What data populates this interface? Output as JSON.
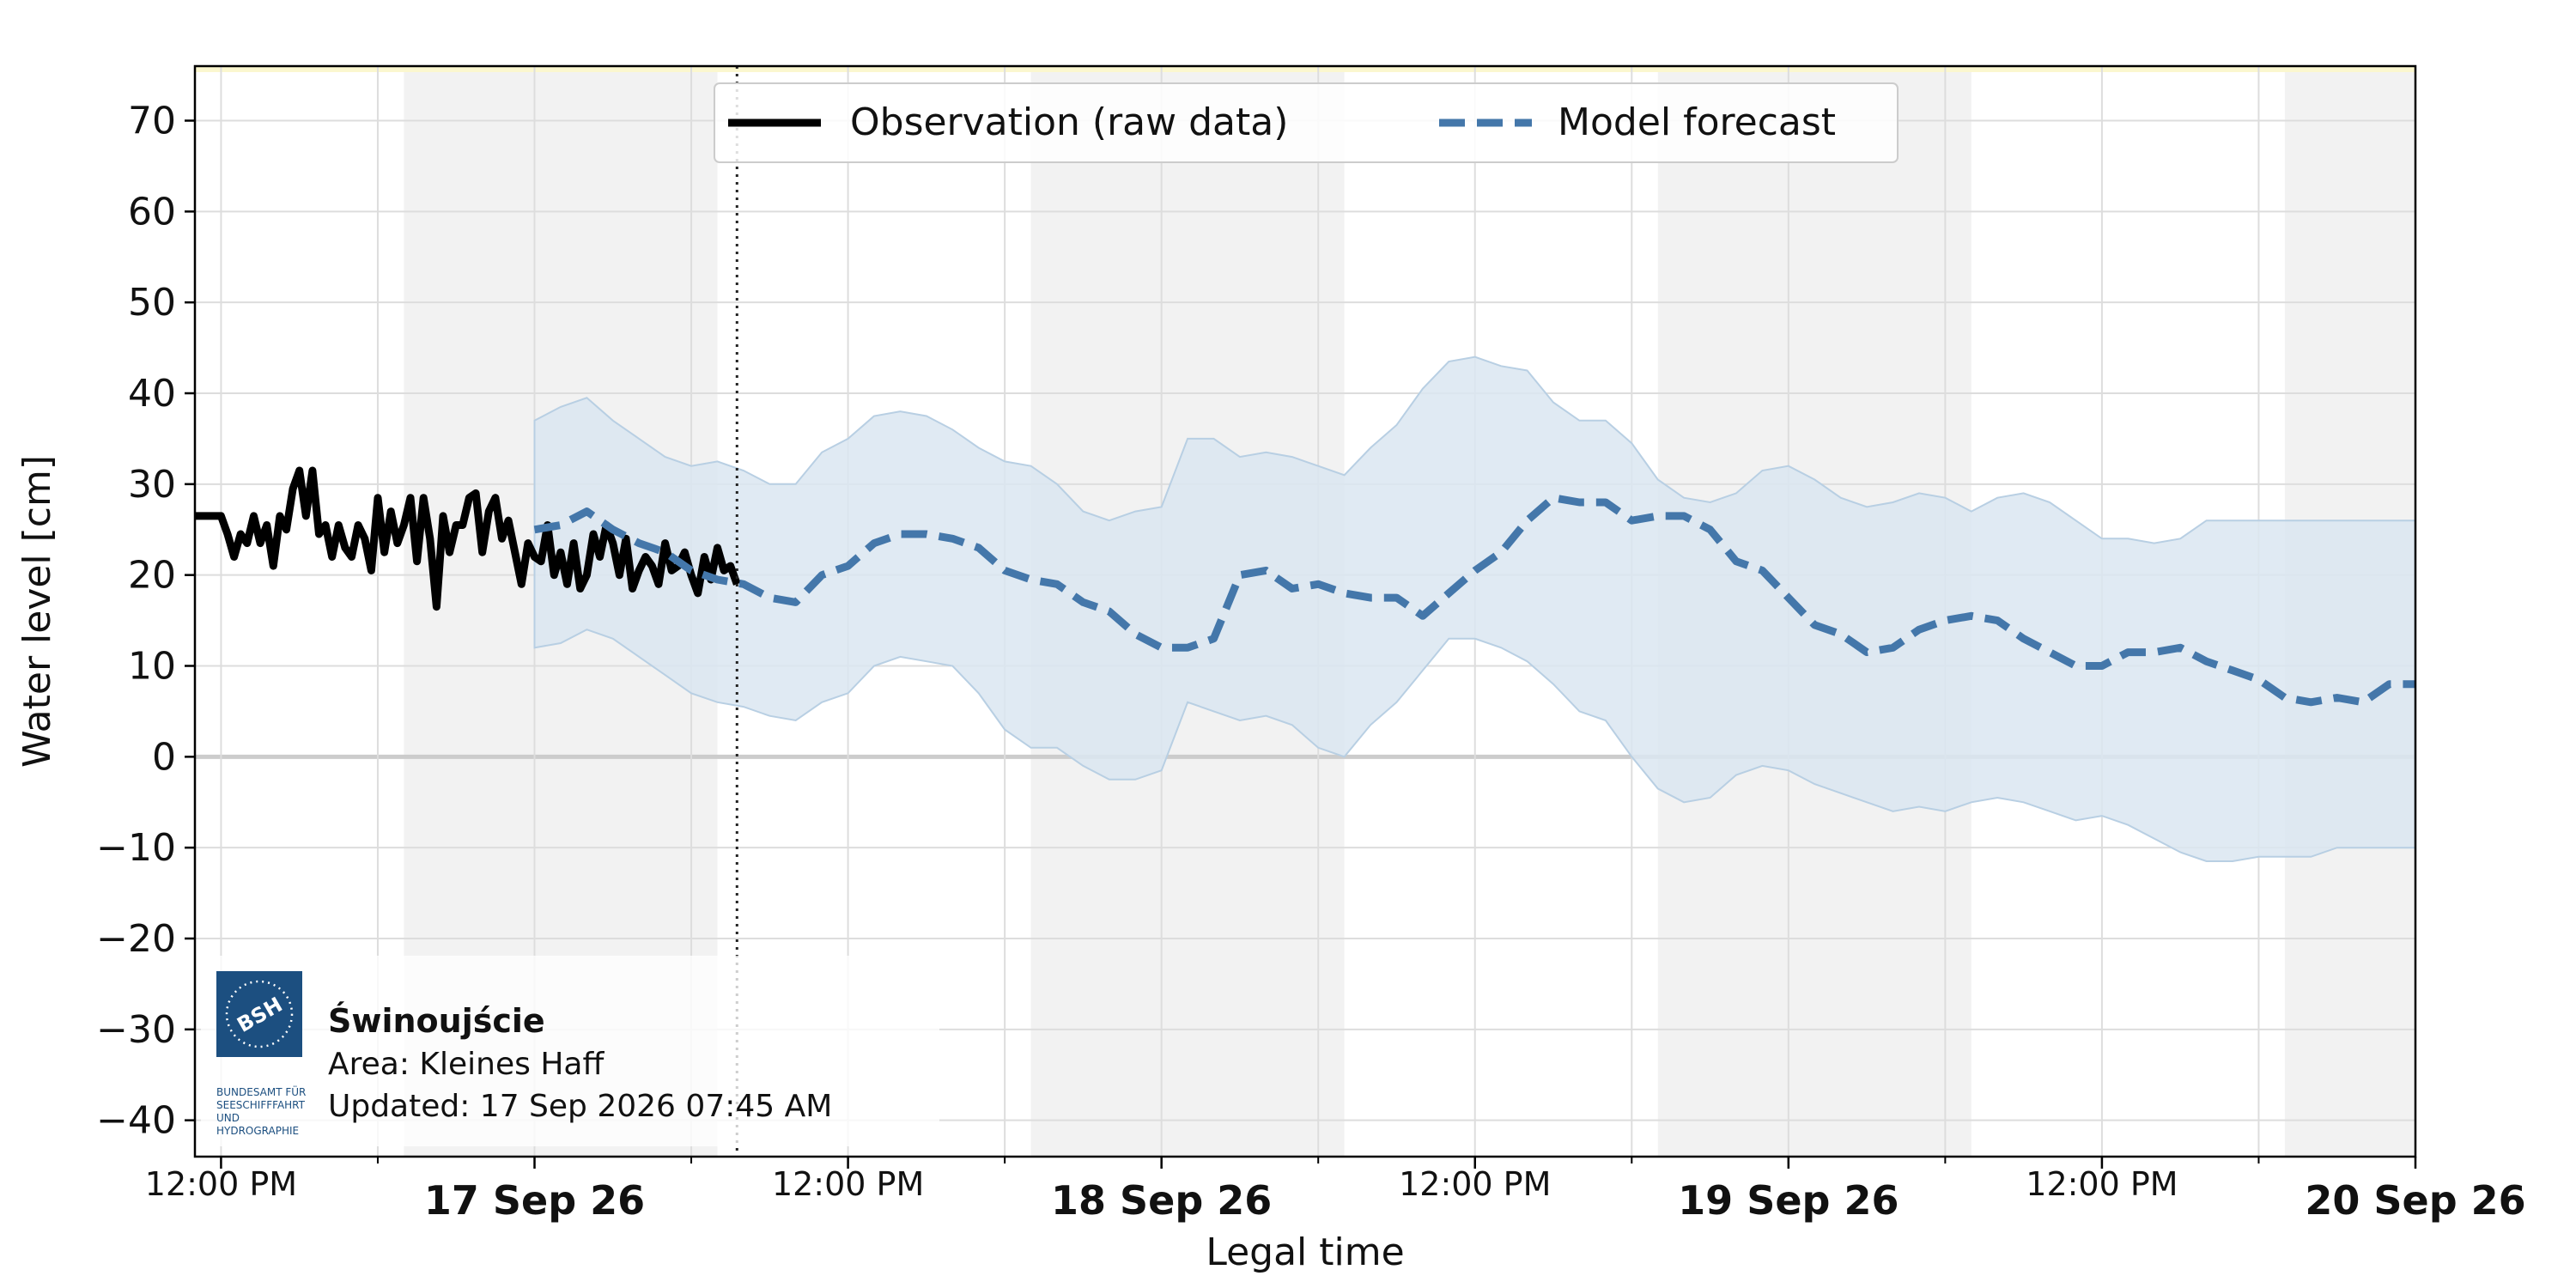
{
  "chart_data": {
    "type": "line",
    "xlabel": "Legal time",
    "ylabel": "Water level [cm]",
    "ylim": [
      -44,
      76
    ],
    "xlim": [
      "2026-09-16 11:00",
      "2026-09-20 00:00"
    ],
    "yticks": [
      70,
      60,
      50,
      40,
      30,
      20,
      10,
      0,
      -10,
      -20,
      -30,
      -40
    ],
    "grid": true,
    "legend_position": "top-center",
    "now_marker": "2026-09-17 07:45",
    "x_ticks": [
      {
        "t": "2026-09-16 12:00",
        "label": "12:00 PM",
        "major": false
      },
      {
        "t": "2026-09-17 00:00",
        "label": "17 Sep 26",
        "major": true
      },
      {
        "t": "2026-09-17 12:00",
        "label": "12:00 PM",
        "major": false
      },
      {
        "t": "2026-09-18 00:00",
        "label": "18 Sep 26",
        "major": true
      },
      {
        "t": "2026-09-18 12:00",
        "label": "12:00 PM",
        "major": false
      },
      {
        "t": "2026-09-19 00:00",
        "label": "19 Sep 26",
        "major": true
      },
      {
        "t": "2026-09-19 12:00",
        "label": "12:00 PM",
        "major": false
      },
      {
        "t": "2026-09-20 00:00",
        "label": "20 Sep 26",
        "major": true
      }
    ],
    "night_bands": [
      [
        "2026-09-16 19:00",
        "2026-09-17 07:00"
      ],
      [
        "2026-09-17 19:00",
        "2026-09-18 07:00"
      ],
      [
        "2026-09-18 19:00",
        "2026-09-19 07:00"
      ],
      [
        "2026-09-19 19:00",
        "2026-09-20 00:00"
      ]
    ],
    "series": [
      {
        "name": "Observation (raw data)",
        "color": "#000000",
        "style": "solid",
        "x": [
          "2026-09-16 11:00",
          "2026-09-16 11:30",
          "2026-09-16 12:00",
          "2026-09-16 12:15",
          "2026-09-16 12:30",
          "2026-09-16 12:45",
          "2026-09-16 13:00",
          "2026-09-16 13:15",
          "2026-09-16 13:30",
          "2026-09-16 13:45",
          "2026-09-16 14:00",
          "2026-09-16 14:15",
          "2026-09-16 14:30",
          "2026-09-16 14:45",
          "2026-09-16 15:00",
          "2026-09-16 15:15",
          "2026-09-16 15:30",
          "2026-09-16 15:45",
          "2026-09-16 16:00",
          "2026-09-16 16:15",
          "2026-09-16 16:30",
          "2026-09-16 16:45",
          "2026-09-16 17:00",
          "2026-09-16 17:15",
          "2026-09-16 17:30",
          "2026-09-16 17:45",
          "2026-09-16 18:00",
          "2026-09-16 18:15",
          "2026-09-16 18:30",
          "2026-09-16 18:45",
          "2026-09-16 19:00",
          "2026-09-16 19:15",
          "2026-09-16 19:30",
          "2026-09-16 19:45",
          "2026-09-16 20:00",
          "2026-09-16 20:15",
          "2026-09-16 20:30",
          "2026-09-16 20:45",
          "2026-09-16 21:00",
          "2026-09-16 21:15",
          "2026-09-16 21:30",
          "2026-09-16 21:45",
          "2026-09-16 22:00",
          "2026-09-16 22:15",
          "2026-09-16 22:30",
          "2026-09-16 22:45",
          "2026-09-16 23:00",
          "2026-09-16 23:15",
          "2026-09-16 23:30",
          "2026-09-16 23:45",
          "2026-09-17 00:00",
          "2026-09-17 00:15",
          "2026-09-17 00:30",
          "2026-09-17 00:45",
          "2026-09-17 01:00",
          "2026-09-17 01:15",
          "2026-09-17 01:30",
          "2026-09-17 01:45",
          "2026-09-17 02:00",
          "2026-09-17 02:15",
          "2026-09-17 02:30",
          "2026-09-17 02:45",
          "2026-09-17 03:00",
          "2026-09-17 03:15",
          "2026-09-17 03:30",
          "2026-09-17 03:45",
          "2026-09-17 04:00",
          "2026-09-17 04:15",
          "2026-09-17 04:30",
          "2026-09-17 04:45",
          "2026-09-17 05:00",
          "2026-09-17 05:15",
          "2026-09-17 05:30",
          "2026-09-17 05:45",
          "2026-09-17 06:00",
          "2026-09-17 06:15",
          "2026-09-17 06:30",
          "2026-09-17 06:45",
          "2026-09-17 07:00",
          "2026-09-17 07:15",
          "2026-09-17 07:30",
          "2026-09-17 07:45"
        ],
        "y": [
          26.5,
          26.5,
          26.5,
          24.5,
          22,
          24.5,
          23.5,
          26.5,
          23.5,
          25.5,
          21,
          26.5,
          25,
          29.5,
          31.5,
          26.5,
          31.5,
          24.5,
          25.5,
          22,
          25.5,
          23,
          22,
          25.5,
          24,
          20.5,
          28.5,
          22.5,
          27,
          23.5,
          25.5,
          28.5,
          21.5,
          28.5,
          24,
          16.5,
          26.5,
          22.5,
          25.5,
          25.5,
          28.5,
          29,
          22.5,
          27,
          28.5,
          24,
          26,
          22.5,
          19,
          23.5,
          22,
          21.5,
          25.5,
          20,
          22.5,
          19,
          23.5,
          18.5,
          20,
          24.5,
          22,
          25.5,
          23.5,
          20,
          24,
          18.5,
          20.5,
          22,
          21,
          19,
          23.5,
          20.5,
          21,
          22.5,
          20,
          18,
          22,
          19.5,
          23,
          20.5,
          21,
          19
        ]
      },
      {
        "name": "Model forecast",
        "color": "#4477aa",
        "style": "dashed",
        "x": [
          "2026-09-17 00:00",
          "2026-09-17 01:00",
          "2026-09-17 02:00",
          "2026-09-17 03:00",
          "2026-09-17 04:00",
          "2026-09-17 05:00",
          "2026-09-17 06:00",
          "2026-09-17 07:00",
          "2026-09-17 08:00",
          "2026-09-17 09:00",
          "2026-09-17 10:00",
          "2026-09-17 11:00",
          "2026-09-17 12:00",
          "2026-09-17 13:00",
          "2026-09-17 14:00",
          "2026-09-17 15:00",
          "2026-09-17 16:00",
          "2026-09-17 17:00",
          "2026-09-17 18:00",
          "2026-09-17 19:00",
          "2026-09-17 20:00",
          "2026-09-17 21:00",
          "2026-09-17 22:00",
          "2026-09-17 23:00",
          "2026-09-18 00:00",
          "2026-09-18 01:00",
          "2026-09-18 02:00",
          "2026-09-18 03:00",
          "2026-09-18 04:00",
          "2026-09-18 05:00",
          "2026-09-18 06:00",
          "2026-09-18 07:00",
          "2026-09-18 08:00",
          "2026-09-18 09:00",
          "2026-09-18 10:00",
          "2026-09-18 11:00",
          "2026-09-18 12:00",
          "2026-09-18 13:00",
          "2026-09-18 14:00",
          "2026-09-18 15:00",
          "2026-09-18 16:00",
          "2026-09-18 17:00",
          "2026-09-18 18:00",
          "2026-09-18 19:00",
          "2026-09-18 20:00",
          "2026-09-18 21:00",
          "2026-09-18 22:00",
          "2026-09-18 23:00",
          "2026-09-19 00:00",
          "2026-09-19 01:00",
          "2026-09-19 02:00",
          "2026-09-19 03:00",
          "2026-09-19 04:00",
          "2026-09-19 05:00",
          "2026-09-19 06:00",
          "2026-09-19 07:00",
          "2026-09-19 08:00",
          "2026-09-19 09:00",
          "2026-09-19 10:00",
          "2026-09-19 11:00",
          "2026-09-19 12:00",
          "2026-09-19 13:00",
          "2026-09-19 14:00",
          "2026-09-19 15:00",
          "2026-09-19 16:00",
          "2026-09-19 17:00",
          "2026-09-19 18:00",
          "2026-09-19 19:00",
          "2026-09-19 20:00",
          "2026-09-19 21:00",
          "2026-09-19 22:00",
          "2026-09-19 23:00",
          "2026-09-20 00:00"
        ],
        "y": [
          25,
          25.5,
          27,
          25,
          23.5,
          22.5,
          20.5,
          19.5,
          19,
          17.5,
          17,
          20,
          21,
          23.5,
          24.5,
          24.5,
          24,
          23,
          20.5,
          19.5,
          19,
          17,
          16,
          13.5,
          12,
          12,
          13,
          20,
          20.5,
          18.5,
          19,
          18,
          17.5,
          17.5,
          15.5,
          18,
          20.5,
          22.5,
          26,
          28.5,
          28,
          28,
          26,
          26.5,
          26.5,
          25,
          21.5,
          20.5,
          17.5,
          14.5,
          13.5,
          11.5,
          12,
          14,
          15,
          15.5,
          15,
          13,
          11.5,
          10,
          10,
          11.5,
          11.5,
          12,
          10.5,
          9.5,
          8.5,
          6.5,
          6,
          6.5,
          6,
          8,
          8
        ],
        "band_upper": [
          37,
          38.5,
          39.5,
          37,
          35,
          33,
          32,
          32.5,
          31.5,
          30,
          30,
          33.5,
          35,
          37.5,
          38,
          37.5,
          36,
          34,
          32.5,
          32,
          30,
          27,
          26,
          27,
          27.5,
          35,
          35,
          33,
          33.5,
          33,
          32,
          31,
          34,
          36.5,
          40.5,
          43.5,
          44,
          43,
          42.5,
          39,
          37,
          37,
          34.5,
          30.5,
          28.5,
          28,
          29,
          31.5,
          32,
          30.5,
          28.5,
          27.5,
          28,
          29,
          28.5,
          27,
          28.5,
          29,
          28,
          26,
          24,
          24,
          23.5,
          24,
          26,
          26,
          26,
          26,
          26,
          26,
          26,
          26,
          26
        ],
        "band_lower": [
          12,
          12.5,
          14,
          13,
          11,
          9,
          7,
          6,
          5.5,
          4.5,
          4,
          6,
          7,
          10,
          11,
          10.5,
          10,
          7,
          3,
          1,
          1,
          -1,
          -2.5,
          -2.5,
          -1.5,
          6,
          5,
          4,
          4.5,
          3.5,
          1,
          0,
          3.5,
          6,
          9.5,
          13,
          13,
          12,
          10.5,
          8,
          5,
          4,
          0,
          -3.5,
          -5,
          -4.5,
          -2,
          -1,
          -1.5,
          -3,
          -4,
          -5,
          -6,
          -5.5,
          -6,
          -5,
          -4.5,
          -5,
          -6,
          -7,
          -6.5,
          -7.5,
          -9,
          -10.5,
          -11.5,
          -11.5,
          -11,
          -11,
          -11,
          -10,
          -10,
          -10,
          -10
        ]
      }
    ],
    "legend": [
      {
        "label": "Observation (raw data)",
        "color": "#000000",
        "style": "solid"
      },
      {
        "label": "Model forecast",
        "color": "#4477aa",
        "style": "dashed"
      }
    ],
    "colors": {
      "band_fill": "#dae6f1",
      "band_edge": "#b8cfe3",
      "night_band": "#f2f2f2",
      "grid": "#dddddd",
      "zero_line": "#cccccc",
      "top_strip": "#fbf7cf"
    }
  },
  "info": {
    "station_name": "Świnoujście",
    "area": "Area: Kleines Haff",
    "updated": "Updated: 17 Sep 2026 07:45 AM"
  },
  "logo": {
    "icon_name": "bsh-logo",
    "badge_text": "BSH",
    "caption_lines": [
      "BUNDESAMT FÜR",
      "SEESCHIFFFAHRT",
      "UND",
      "HYDROGRAPHIE"
    ],
    "color": "#1c4f80"
  }
}
